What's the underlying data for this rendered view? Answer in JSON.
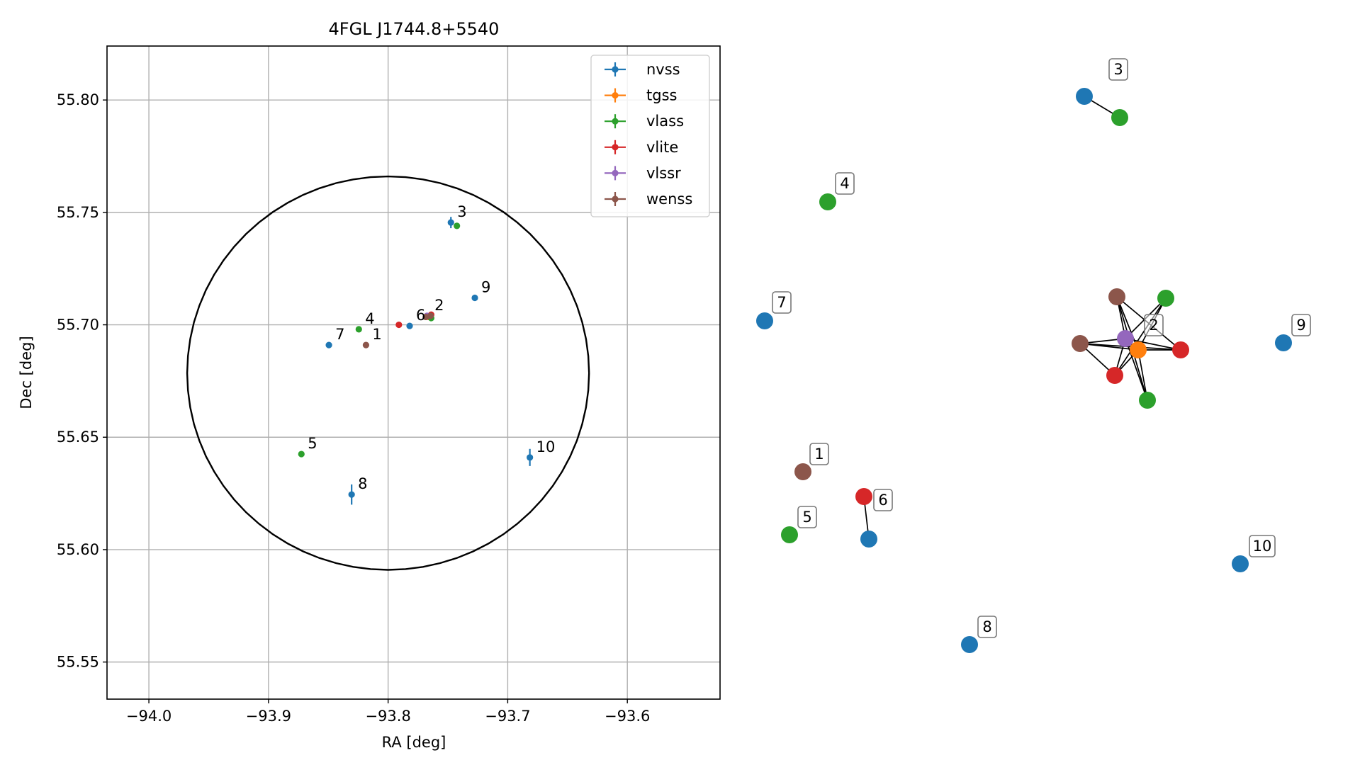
{
  "chart_data": [
    {
      "type": "scatter",
      "title": "4FGL J1744.8+5540",
      "xlabel": "RA [deg]",
      "ylabel": "Dec [deg]",
      "xlim": [
        -94.035,
        -93.5225
      ],
      "ylim": [
        55.5335,
        55.824
      ],
      "xticks": [
        -94.0,
        -93.9,
        -93.8,
        -93.7,
        -93.6
      ],
      "xtick_labels": [
        "−94.0",
        "−93.9",
        "−93.8",
        "−93.7",
        "−93.6"
      ],
      "yticks": [
        55.55,
        55.6,
        55.65,
        55.7,
        55.75,
        55.8
      ],
      "ytick_labels": [
        "55.55",
        "55.60",
        "55.65",
        "55.70",
        "55.75",
        "55.80"
      ],
      "grid": true,
      "legend_position": "top-right",
      "circle": {
        "ra_center": -93.8,
        "dec_center": 55.6785,
        "ra_radius": 0.168,
        "dec_radius": 0.0875,
        "color": "#000000"
      },
      "series": [
        {
          "name": "nvss",
          "color": "#1f77b4",
          "points": [
            {
              "ra": -93.7475,
              "dec": 55.7455,
              "err_dec": 0.0025
            },
            {
              "ra": -93.7275,
              "dec": 55.712,
              "err_dec": 0.0008
            },
            {
              "ra": -93.782,
              "dec": 55.6995,
              "err_dec": 0.0008
            },
            {
              "ra": -93.8495,
              "dec": 55.691,
              "err_dec": 0.0008
            },
            {
              "ra": -93.6815,
              "dec": 55.641,
              "err_dec": 0.0038
            },
            {
              "ra": -93.8305,
              "dec": 55.6245,
              "err_dec": 0.0045
            }
          ]
        },
        {
          "name": "tgss",
          "color": "#ff7f0e",
          "points": [
            {
              "ra": -93.766,
              "dec": 55.7035,
              "err_dec": 0.001
            }
          ]
        },
        {
          "name": "vlass",
          "color": "#2ca02c",
          "points": [
            {
              "ra": -93.7425,
              "dec": 55.744,
              "err_dec": 0.0005
            },
            {
              "ra": -93.8245,
              "dec": 55.698,
              "err_dec": 0.0005
            },
            {
              "ra": -93.764,
              "dec": 55.703,
              "err_dec": 0.0005
            },
            {
              "ra": -93.8725,
              "dec": 55.6425,
              "err_dec": 0.0005
            }
          ]
        },
        {
          "name": "vlite",
          "color": "#d62728",
          "points": [
            {
              "ra": -93.791,
              "dec": 55.7,
              "err_dec": 0.0008
            },
            {
              "ra": -93.764,
              "dec": 55.7045,
              "err_dec": 0.0008
            }
          ]
        },
        {
          "name": "vlssr",
          "color": "#9467bd",
          "points": [
            {
              "ra": -93.7675,
              "dec": 55.704,
              "err_dec": 0.0008
            }
          ]
        },
        {
          "name": "wenss",
          "color": "#8c564b",
          "points": [
            {
              "ra": -93.8185,
              "dec": 55.691,
              "err_dec": 0.0008
            },
            {
              "ra": -93.7685,
              "dec": 55.7035,
              "err_dec": 0.0008
            },
            {
              "ra": -93.7645,
              "dec": 55.704,
              "err_dec": 0.0008
            }
          ]
        }
      ],
      "annotations": [
        {
          "text": "1",
          "ra": -93.8185,
          "dec": 55.691
        },
        {
          "text": "2",
          "ra": -93.7665,
          "dec": 55.704
        },
        {
          "text": "3",
          "ra": -93.7475,
          "dec": 55.7455
        },
        {
          "text": "4",
          "ra": -93.8245,
          "dec": 55.698
        },
        {
          "text": "5",
          "ra": -93.8725,
          "dec": 55.6425
        },
        {
          "text": "6",
          "ra": -93.782,
          "dec": 55.6995
        },
        {
          "text": "7",
          "ra": -93.8495,
          "dec": 55.691
        },
        {
          "text": "8",
          "ra": -93.8305,
          "dec": 55.6245
        },
        {
          "text": "9",
          "ra": -93.7275,
          "dec": 55.712
        },
        {
          "text": "10",
          "ra": -93.6815,
          "dec": 55.641
        }
      ]
    },
    {
      "type": "network",
      "nodes": [
        {
          "id": "n3a",
          "catalog": "nvss",
          "color": "#1f77b4"
        },
        {
          "id": "n3b",
          "catalog": "vlass",
          "color": "#2ca02c"
        },
        {
          "id": "n4",
          "catalog": "vlass",
          "color": "#2ca02c"
        },
        {
          "id": "n7",
          "catalog": "nvss",
          "color": "#1f77b4"
        },
        {
          "id": "n9",
          "catalog": "nvss",
          "color": "#1f77b4"
        },
        {
          "id": "n1",
          "catalog": "wenss",
          "color": "#8c564b"
        },
        {
          "id": "n5",
          "catalog": "vlass",
          "color": "#2ca02c"
        },
        {
          "id": "n6a",
          "catalog": "vlite",
          "color": "#d62728"
        },
        {
          "id": "n6b",
          "catalog": "nvss",
          "color": "#1f77b4"
        },
        {
          "id": "n8",
          "catalog": "nvss",
          "color": "#1f77b4"
        },
        {
          "id": "n10",
          "catalog": "nvss",
          "color": "#1f77b4"
        },
        {
          "id": "c_brown_top",
          "catalog": "wenss",
          "color": "#8c564b"
        },
        {
          "id": "c_green_top",
          "catalog": "vlass",
          "color": "#2ca02c"
        },
        {
          "id": "c_brown_left",
          "catalog": "wenss",
          "color": "#8c564b"
        },
        {
          "id": "c_purple",
          "catalog": "vlssr",
          "color": "#9467bd"
        },
        {
          "id": "c_orange",
          "catalog": "tgss",
          "color": "#ff7f0e"
        },
        {
          "id": "c_red_right",
          "catalog": "vlite",
          "color": "#d62728"
        },
        {
          "id": "c_red_bottom",
          "catalog": "vlite",
          "color": "#d62728"
        },
        {
          "id": "c_green_bottom",
          "catalog": "vlass",
          "color": "#2ca02c"
        }
      ],
      "edges": [
        [
          "n3a",
          "n3b"
        ],
        [
          "n6a",
          "n6b"
        ],
        [
          "c_brown_top",
          "c_purple"
        ],
        [
          "c_brown_top",
          "c_orange"
        ],
        [
          "c_brown_top",
          "c_red_right"
        ],
        [
          "c_brown_top",
          "c_green_bottom"
        ],
        [
          "c_green_top",
          "c_purple"
        ],
        [
          "c_green_top",
          "c_orange"
        ],
        [
          "c_green_top",
          "c_red_bottom"
        ],
        [
          "c_brown_left",
          "c_purple"
        ],
        [
          "c_brown_left",
          "c_orange"
        ],
        [
          "c_brown_left",
          "c_red_right"
        ],
        [
          "c_brown_left",
          "c_red_bottom"
        ],
        [
          "c_purple",
          "c_orange"
        ],
        [
          "c_purple",
          "c_red_right"
        ],
        [
          "c_purple",
          "c_green_bottom"
        ],
        [
          "c_purple",
          "c_red_bottom"
        ],
        [
          "c_orange",
          "c_red_right"
        ],
        [
          "c_orange",
          "c_green_bottom"
        ],
        [
          "c_orange",
          "c_red_bottom"
        ]
      ],
      "labels": [
        {
          "text": "3",
          "near": "n3a"
        },
        {
          "text": "4",
          "near": "n4"
        },
        {
          "text": "7",
          "near": "n7"
        },
        {
          "text": "2",
          "near": "c_purple"
        },
        {
          "text": "9",
          "near": "n9"
        },
        {
          "text": "1",
          "near": "n1"
        },
        {
          "text": "6",
          "near": "n6a"
        },
        {
          "text": "5",
          "near": "n5"
        },
        {
          "text": "10",
          "near": "n10"
        },
        {
          "text": "8",
          "near": "n8"
        }
      ]
    }
  ]
}
